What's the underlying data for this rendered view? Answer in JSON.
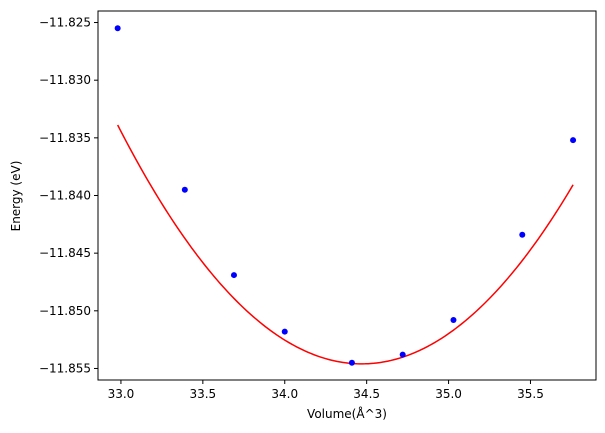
{
  "chart_data": {
    "type": "scatter",
    "title": "",
    "xlabel": "Volume(Å^3)",
    "ylabel": "Energy (eV)",
    "xlim": [
      32.86,
      35.9
    ],
    "ylim": [
      -11.856,
      -11.824
    ],
    "x_ticks": [
      33.0,
      33.5,
      34.0,
      34.5,
      35.0,
      35.5
    ],
    "x_tick_labels": [
      "33.0",
      "33.5",
      "34.0",
      "34.5",
      "35.0",
      "35.5"
    ],
    "y_ticks": [
      -11.825,
      -11.83,
      -11.835,
      -11.84,
      -11.845,
      -11.85,
      -11.855
    ],
    "y_tick_labels": [
      "−11.825",
      "−11.830",
      "−11.835",
      "−11.840",
      "−11.845",
      "−11.850",
      "−11.855"
    ],
    "grid": false,
    "series": [
      {
        "kind": "points",
        "color": "#0000ff",
        "x": [
          32.98,
          33.39,
          33.69,
          34.0,
          34.41,
          34.72,
          35.03,
          35.45,
          35.76
        ],
        "y": [
          -11.8255,
          -11.8395,
          -11.8469,
          -11.8518,
          -11.8545,
          -11.8538,
          -11.8508,
          -11.8434,
          -11.8352
        ]
      },
      {
        "kind": "fit-curve",
        "color": "#ff0000",
        "vertex_x": 34.47,
        "vertex_y": -11.8546,
        "curvature": 0.00933,
        "x_range": [
          32.98,
          35.76
        ]
      }
    ]
  }
}
